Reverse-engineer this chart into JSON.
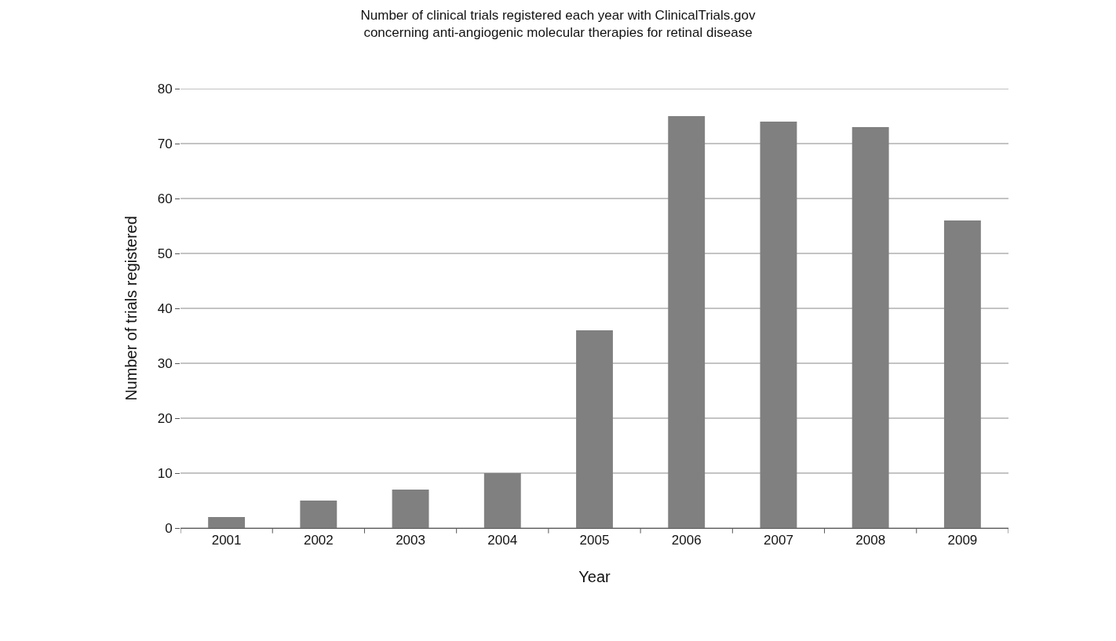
{
  "chart_data": {
    "type": "bar",
    "title": "Number of clinical trials registered each year with ClinicalTrials.gov\nconcerning anti-angiogenic molecular therapies for retinal disease",
    "xlabel": "Year",
    "ylabel": "Number of trials registered",
    "categories": [
      "2001",
      "2002",
      "2003",
      "2004",
      "2005",
      "2006",
      "2007",
      "2008",
      "2009"
    ],
    "values": [
      2,
      5,
      7,
      10,
      36,
      75,
      74,
      73,
      56
    ],
    "color": "#808080",
    "ylim": [
      0,
      80
    ],
    "yticks": [
      0,
      10,
      20,
      30,
      40,
      50,
      60,
      70,
      80
    ],
    "grid": "y"
  }
}
